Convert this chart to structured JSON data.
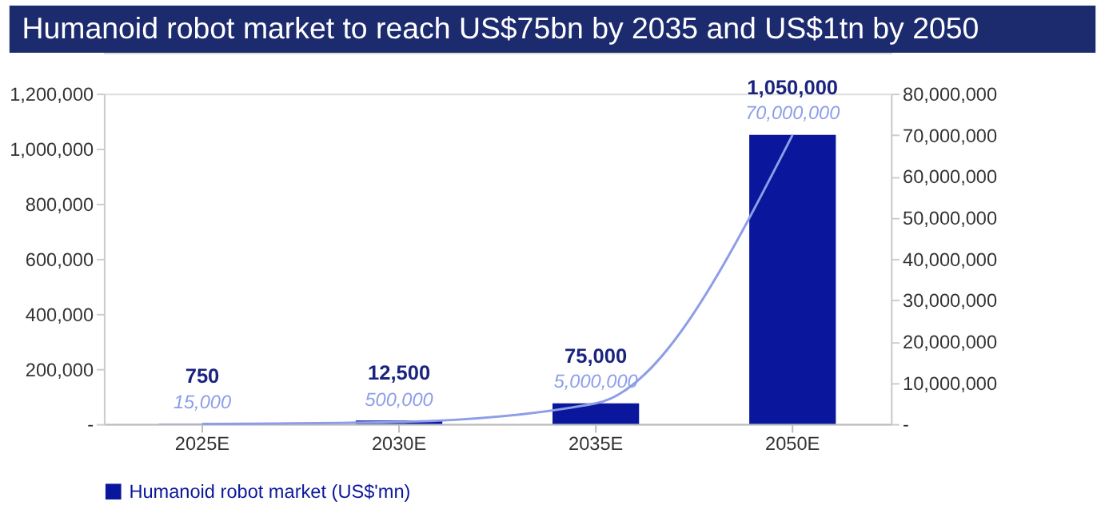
{
  "chart_data": {
    "type": "bar",
    "title": "Humanoid robot market to reach US$75bn by 2035 and US$1tn by 2050",
    "categories": [
      "2025E",
      "2030E",
      "2035E",
      "2050E"
    ],
    "series": [
      {
        "name": "Humanoid robot market (US$'mn)",
        "color": "#0a179c",
        "values": [
          750,
          12500,
          75000,
          1050000
        ],
        "value_labels": [
          "750",
          "12,500",
          "75,000",
          "1,050,000"
        ]
      },
      {
        "type": "line",
        "axis": "y2",
        "color": "#8d9ee8",
        "values": [
          15000,
          500000,
          5000000,
          70000000
        ],
        "value_labels": [
          "15,000",
          "500,000",
          "5,000,000",
          "70,000,000"
        ]
      }
    ],
    "ylim": [
      0,
      1200000
    ],
    "yticks": [
      {
        "value": 0,
        "label": "-"
      },
      {
        "value": 200000,
        "label": "200,000"
      },
      {
        "value": 400000,
        "label": "400,000"
      },
      {
        "value": 600000,
        "label": "600,000"
      },
      {
        "value": 800000,
        "label": "800,000"
      },
      {
        "value": 1000000,
        "label": "1,000,000"
      },
      {
        "value": 1200000,
        "label": "1,200,000"
      }
    ],
    "y2lim": [
      0,
      80000000
    ],
    "y2ticks": [
      {
        "value": 0,
        "label": "-"
      },
      {
        "value": 10000000,
        "label": "10,000,000"
      },
      {
        "value": 20000000,
        "label": "20,000,000"
      },
      {
        "value": 30000000,
        "label": "30,000,000"
      },
      {
        "value": 40000000,
        "label": "40,000,000"
      },
      {
        "value": 50000000,
        "label": "50,000,000"
      },
      {
        "value": 60000000,
        "label": "60,000,000"
      },
      {
        "value": 70000000,
        "label": "70,000,000"
      },
      {
        "value": 80000000,
        "label": "80,000,000"
      }
    ],
    "data_labels": true,
    "grid": false,
    "legend": "bottom"
  }
}
